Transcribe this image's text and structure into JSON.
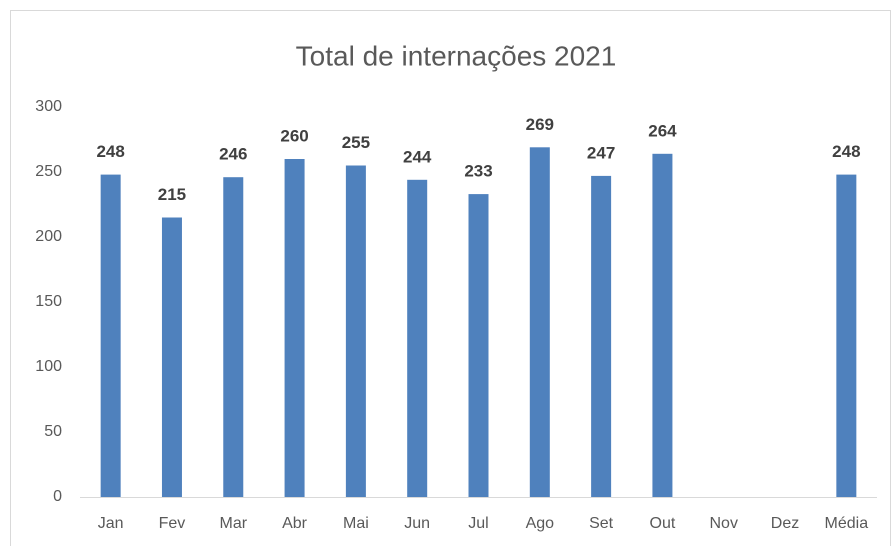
{
  "chart_data": {
    "type": "bar",
    "title": "Total de internações 2021",
    "categories": [
      "Jan",
      "Fev",
      "Mar",
      "Abr",
      "Mai",
      "Jun",
      "Jul",
      "Ago",
      "Set",
      "Out",
      "Nov",
      "Dez",
      "Média"
    ],
    "values": [
      248,
      215,
      246,
      260,
      255,
      244,
      233,
      269,
      247,
      264,
      null,
      null,
      248
    ],
    "color": "#4f81bd",
    "ylim": [
      0,
      300
    ],
    "yticks": [
      0,
      50,
      100,
      150,
      200,
      250,
      300
    ],
    "grid": false,
    "data_labels": true
  }
}
